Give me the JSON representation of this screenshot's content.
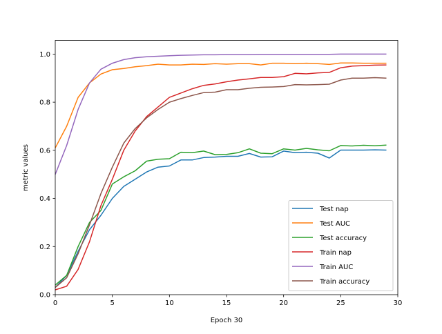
{
  "chart_data": {
    "type": "line",
    "title": "",
    "xlabel": "Epoch 30",
    "ylabel": "metric values",
    "xlim": [
      0,
      30
    ],
    "ylim": [
      0,
      1.057
    ],
    "xticks": [
      0,
      5,
      10,
      15,
      20,
      25,
      30
    ],
    "yticks": [
      "0.0",
      "0.2",
      "0.4",
      "0.6",
      "0.8",
      "1.0"
    ],
    "grid": false,
    "legend_position": "lower-right",
    "x": [
      0,
      1,
      2,
      3,
      4,
      5,
      6,
      7,
      8,
      9,
      10,
      11,
      12,
      13,
      14,
      15,
      16,
      17,
      18,
      19,
      20,
      21,
      22,
      23,
      24,
      25,
      26,
      27,
      28,
      29
    ],
    "series": [
      {
        "name": "Test nap",
        "color": "#1f77b4",
        "values": [
          0.03,
          0.08,
          0.18,
          0.27,
          0.33,
          0.4,
          0.45,
          0.48,
          0.51,
          0.53,
          0.535,
          0.56,
          0.56,
          0.57,
          0.572,
          0.575,
          0.575,
          0.587,
          0.572,
          0.573,
          0.597,
          0.59,
          0.592,
          0.588,
          0.568,
          0.601,
          0.601,
          0.601,
          0.602,
          0.601
        ]
      },
      {
        "name": "Test AUC",
        "color": "#ff7f0e",
        "values": [
          0.61,
          0.7,
          0.82,
          0.88,
          0.917,
          0.935,
          0.94,
          0.947,
          0.952,
          0.958,
          0.955,
          0.955,
          0.958,
          0.957,
          0.96,
          0.958,
          0.96,
          0.96,
          0.955,
          0.962,
          0.962,
          0.96,
          0.962,
          0.96,
          0.957,
          0.963,
          0.963,
          0.962,
          0.962,
          0.962
        ]
      },
      {
        "name": "Test accuracy",
        "color": "#2ca02c",
        "values": [
          0.04,
          0.08,
          0.2,
          0.3,
          0.35,
          0.46,
          0.49,
          0.515,
          0.555,
          0.563,
          0.565,
          0.592,
          0.59,
          0.597,
          0.582,
          0.583,
          0.59,
          0.606,
          0.588,
          0.586,
          0.606,
          0.601,
          0.608,
          0.602,
          0.598,
          0.62,
          0.618,
          0.621,
          0.619,
          0.622
        ]
      },
      {
        "name": "Train nap",
        "color": "#d62728",
        "values": [
          0.02,
          0.035,
          0.105,
          0.22,
          0.37,
          0.48,
          0.6,
          0.68,
          0.74,
          0.78,
          0.82,
          0.838,
          0.856,
          0.87,
          0.876,
          0.885,
          0.892,
          0.897,
          0.903,
          0.903,
          0.906,
          0.92,
          0.918,
          0.922,
          0.924,
          0.943,
          0.95,
          0.952,
          0.954,
          0.955
        ]
      },
      {
        "name": "Train AUC",
        "color": "#9467bd",
        "values": [
          0.5,
          0.62,
          0.77,
          0.88,
          0.937,
          0.962,
          0.977,
          0.985,
          0.989,
          0.991,
          0.993,
          0.995,
          0.996,
          0.997,
          0.997,
          0.998,
          0.998,
          0.998,
          0.999,
          0.999,
          0.999,
          0.999,
          0.999,
          0.999,
          0.999,
          1.0,
          1.0,
          1.0,
          1.0,
          1.0
        ]
      },
      {
        "name": "Train accuracy",
        "color": "#8c564b",
        "values": [
          0.03,
          0.07,
          0.17,
          0.29,
          0.42,
          0.53,
          0.63,
          0.69,
          0.735,
          0.77,
          0.8,
          0.815,
          0.828,
          0.84,
          0.842,
          0.852,
          0.852,
          0.858,
          0.862,
          0.863,
          0.865,
          0.873,
          0.872,
          0.873,
          0.875,
          0.892,
          0.9,
          0.9,
          0.902,
          0.9
        ]
      }
    ]
  }
}
